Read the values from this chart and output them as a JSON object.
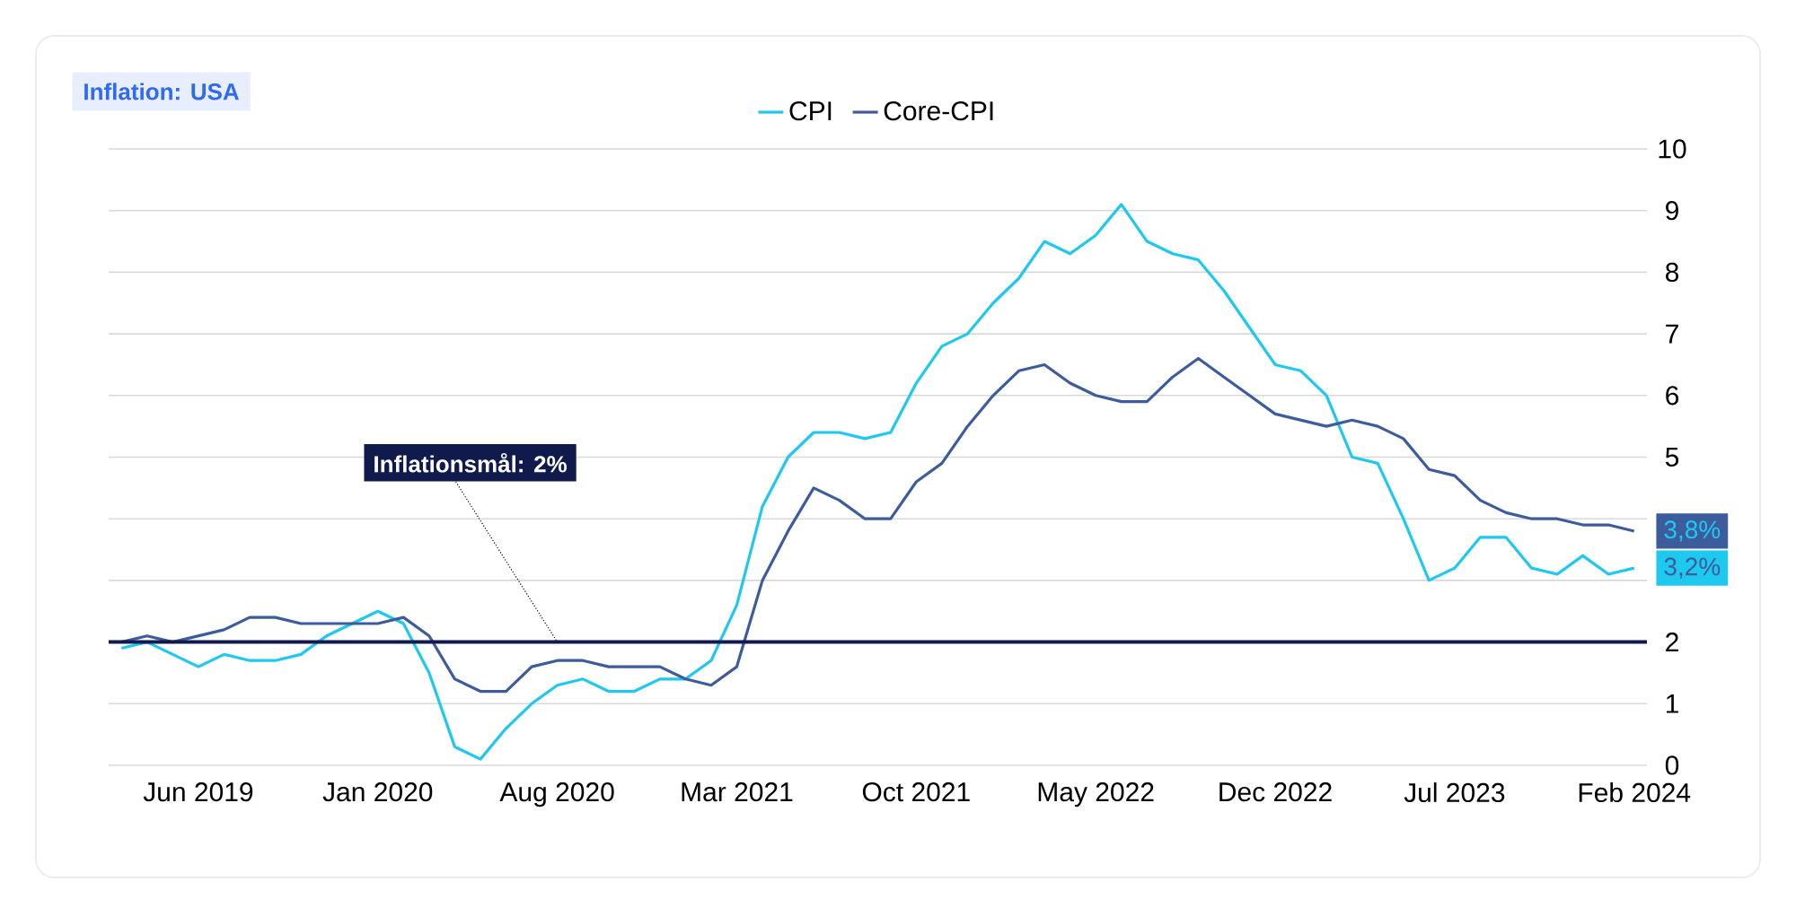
{
  "chart_data": {
    "type": "line",
    "title": "Inflation: USA",
    "categories": [
      null,
      null,
      null,
      "Jun 2019",
      null,
      null,
      null,
      null,
      null,
      null,
      "Jan 2020",
      null,
      null,
      null,
      null,
      null,
      null,
      "Aug 2020",
      null,
      null,
      null,
      null,
      null,
      null,
      "Mar 2021",
      null,
      null,
      null,
      null,
      null,
      null,
      "Oct 2021",
      null,
      null,
      null,
      null,
      null,
      null,
      "May 2022",
      null,
      null,
      null,
      null,
      null,
      null,
      "Dec 2022",
      null,
      null,
      null,
      null,
      null,
      null,
      "Jul 2023",
      null,
      null,
      null,
      null,
      null,
      null,
      "Feb 2024"
    ],
    "series": [
      {
        "name": "CPI",
        "color": "#1ec8ef",
        "values": [
          1.9,
          2.0,
          1.8,
          1.6,
          1.8,
          1.7,
          1.7,
          1.8,
          2.1,
          2.3,
          2.5,
          2.3,
          1.5,
          0.3,
          0.1,
          0.6,
          1.0,
          1.3,
          1.4,
          1.2,
          1.2,
          1.4,
          1.4,
          1.7,
          2.6,
          4.2,
          5.0,
          5.4,
          5.4,
          5.3,
          5.4,
          6.2,
          6.8,
          7.0,
          7.5,
          7.9,
          8.5,
          8.3,
          8.6,
          9.1,
          8.5,
          8.3,
          8.2,
          7.7,
          7.1,
          6.5,
          6.4,
          6.0,
          5.0,
          4.9,
          4.0,
          3.0,
          3.2,
          3.7,
          3.7,
          3.2,
          3.1,
          3.4,
          3.1,
          3.2
        ],
        "value_labels": [
          null,
          null,
          null,
          null,
          null,
          null,
          null,
          null,
          null,
          null,
          null,
          null,
          null,
          null,
          null,
          null,
          null,
          null,
          null,
          null,
          null,
          null,
          null,
          null,
          null,
          null,
          null,
          null,
          null,
          null,
          null,
          null,
          null,
          null,
          null,
          null,
          null,
          null,
          null,
          null,
          null,
          null,
          null,
          null,
          null,
          null,
          null,
          null,
          null,
          null,
          null,
          null,
          null,
          null,
          null,
          null,
          null,
          null,
          null,
          "3,2%"
        ]
      },
      {
        "name": "Core-CPI",
        "color": "#3d5c9c",
        "values": [
          2.0,
          2.1,
          2.0,
          2.1,
          2.2,
          2.4,
          2.4,
          2.3,
          2.3,
          2.3,
          2.3,
          2.4,
          2.1,
          1.4,
          1.2,
          1.2,
          1.6,
          1.7,
          1.7,
          1.6,
          1.6,
          1.6,
          1.4,
          1.3,
          1.6,
          3.0,
          3.8,
          4.5,
          4.3,
          4.0,
          4.0,
          4.6,
          4.9,
          5.5,
          6.0,
          6.4,
          6.5,
          6.2,
          6.0,
          5.9,
          5.9,
          6.3,
          6.6,
          6.3,
          6.0,
          5.7,
          5.6,
          5.5,
          5.6,
          5.5,
          5.3,
          4.8,
          4.7,
          4.3,
          4.1,
          4.0,
          4.0,
          3.9,
          3.9,
          3.8
        ],
        "value_labels": [
          null,
          null,
          null,
          null,
          null,
          null,
          null,
          null,
          null,
          null,
          null,
          null,
          null,
          null,
          null,
          null,
          null,
          null,
          null,
          null,
          null,
          null,
          null,
          null,
          null,
          null,
          null,
          null,
          null,
          null,
          null,
          null,
          null,
          null,
          null,
          null,
          null,
          null,
          null,
          null,
          null,
          null,
          null,
          null,
          null,
          null,
          null,
          null,
          null,
          null,
          null,
          null,
          null,
          null,
          null,
          null,
          null,
          null,
          null,
          "3,8%"
        ]
      }
    ],
    "ylim": [
      0,
      10
    ],
    "yticks": [
      0,
      1,
      2,
      {
        "value": 3,
        "label": null
      },
      {
        "value": 4,
        "label": null
      },
      5,
      6,
      7,
      8,
      9,
      10
    ],
    "ref_lines": [
      {
        "axis": "y",
        "value": 2,
        "color": "#111a4d"
      }
    ],
    "annotations": [
      {
        "text": "Inflationsmål: 2%",
        "x": "Aug 2020",
        "y": 2
      }
    ],
    "grid": "y",
    "legend": "top",
    "marker": "none",
    "line_style": "solid"
  }
}
